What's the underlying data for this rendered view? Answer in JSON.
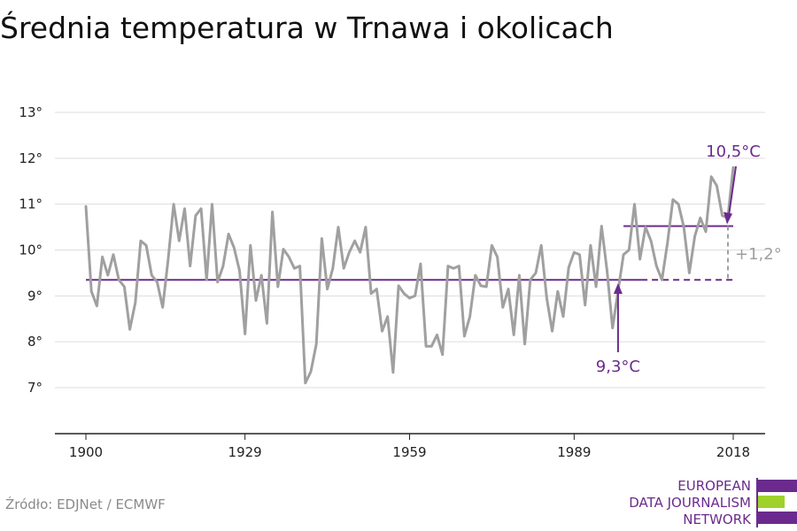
{
  "title": "Średnia temperatura w Trnawa i okolicach",
  "source": "Źródło: EDJNet / ECMWF",
  "logo": {
    "line1": "EUROPEAN",
    "line2": "DATA JOURNALISM",
    "line3": "NETWORK"
  },
  "colors": {
    "series": "#a0a0a0",
    "accent": "#6b2b8e",
    "grid": "#dddddd",
    "logo_green": "#9fd12b",
    "delta": "#a0a0a0"
  },
  "chart_data": {
    "type": "line",
    "title": "Średnia temperatura w Trnawa i okolicach",
    "xlabel": "",
    "ylabel": "",
    "xlim": [
      1900,
      2018
    ],
    "ylim": [
      6,
      13
    ],
    "x_ticks": [
      1900,
      1929,
      1959,
      1989,
      2018
    ],
    "x_tick_labels": [
      "1900",
      "1929",
      "1959",
      "1989",
      "2018"
    ],
    "y_ticks": [
      7,
      8,
      9,
      10,
      11,
      12,
      13
    ],
    "y_tick_labels": [
      "7°",
      "8°",
      "9°",
      "10°",
      "11°",
      "12°",
      "13°"
    ],
    "grid": "horizontal",
    "series": [
      {
        "start_year": 1900,
        "values": [
          10.95,
          9.1,
          8.78,
          9.85,
          9.45,
          9.9,
          9.35,
          9.2,
          8.27,
          8.85,
          10.2,
          10.1,
          9.45,
          9.3,
          8.75,
          9.8,
          11.0,
          10.2,
          10.9,
          9.65,
          10.75,
          10.9,
          9.35,
          11.0,
          9.3,
          9.65,
          10.35,
          10.05,
          9.55,
          8.17,
          10.1,
          8.9,
          9.45,
          8.4,
          10.83,
          9.2,
          10.02,
          9.85,
          9.6,
          9.65,
          7.1,
          7.35,
          7.95,
          10.25,
          9.15,
          9.6,
          10.5,
          9.6,
          9.95,
          10.2,
          9.95,
          10.5,
          9.05,
          9.15,
          8.23,
          8.55,
          7.33,
          9.22,
          9.05,
          8.95,
          9.0,
          9.7,
          7.9,
          7.9,
          8.15,
          7.72,
          9.65,
          9.6,
          9.65,
          8.12,
          8.55,
          9.45,
          9.22,
          9.2,
          10.1,
          9.85,
          8.75,
          9.15,
          8.15,
          9.45,
          7.95,
          9.35,
          9.5,
          10.1,
          8.95,
          8.23,
          9.1,
          8.55,
          9.62,
          9.95,
          9.9,
          8.8,
          10.1,
          9.2,
          10.52,
          9.55,
          8.3,
          9.1,
          9.9,
          10.0,
          11.0,
          9.8,
          10.5,
          10.2,
          9.65,
          9.35,
          10.15,
          11.1,
          11.0,
          10.5,
          9.5,
          10.3,
          10.7,
          10.4,
          11.6,
          11.4,
          10.75,
          10.7,
          11.8
        ]
      }
    ],
    "reference_lines": [
      {
        "label": "9,3°C",
        "value": 9.35,
        "from": 1900,
        "to": 2018
      },
      {
        "label": "10,5°C",
        "value": 10.52,
        "from": 1998,
        "to": 2018
      }
    ],
    "annotations": {
      "baseline": "9,3°C",
      "recent": "10,5°C",
      "delta": "+1,2°"
    }
  }
}
